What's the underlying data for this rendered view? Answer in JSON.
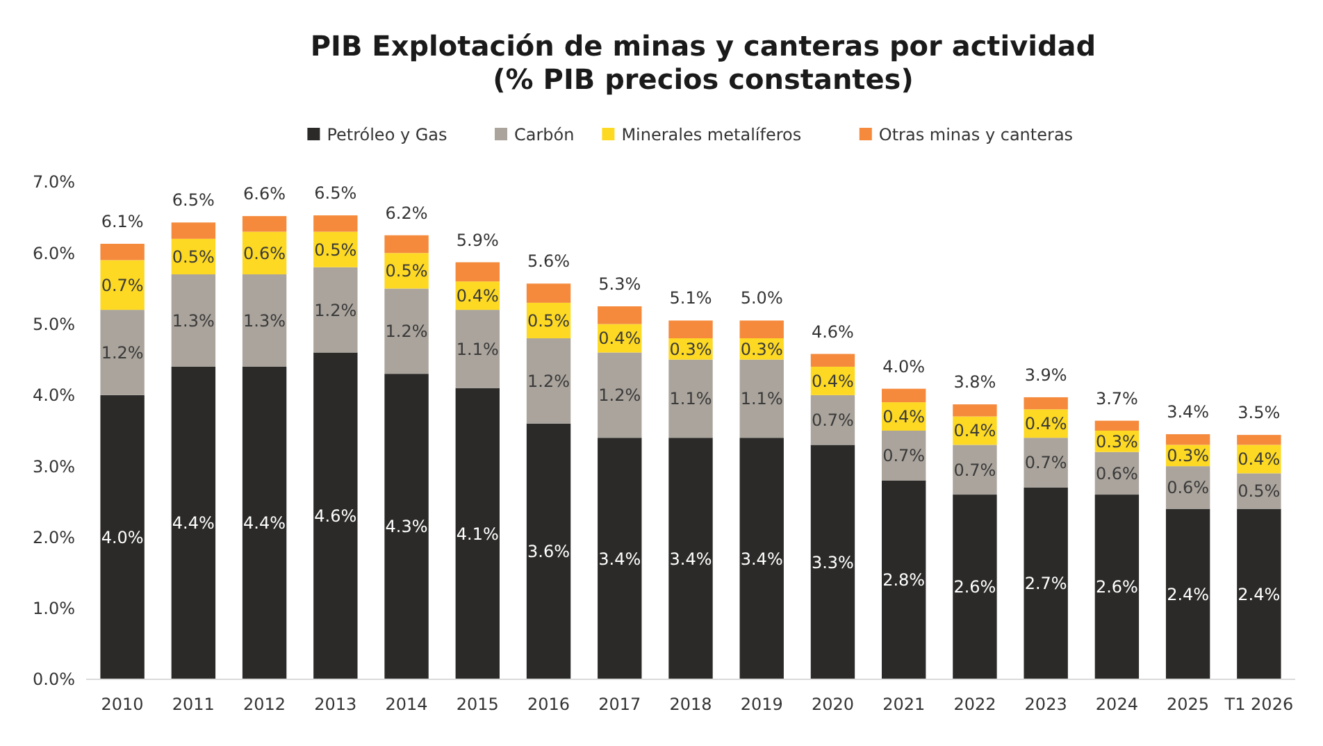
{
  "chart_data": {
    "type": "bar",
    "title": "PIB Explotación de minas y canteras por actividad\n(% PIB precios constantes)",
    "categories": [
      "2010",
      "2011",
      "2012",
      "2013",
      "2014",
      "2015",
      "2016",
      "2017",
      "2018",
      "2019",
      "2020",
      "2021",
      "2022",
      "2023",
      "2024",
      "2025",
      "T1 2026"
    ],
    "stacked": true,
    "legend": "top",
    "ylim": [
      0,
      7
    ],
    "yticks": [
      {
        "value": 0,
        "label": "0.0%"
      },
      {
        "value": 1,
        "label": "1.0%"
      },
      {
        "value": 2,
        "label": "2.0%"
      },
      {
        "value": 3,
        "label": "3.0%"
      },
      {
        "value": 4,
        "label": "4.0%"
      },
      {
        "value": 5,
        "label": "5.0%"
      },
      {
        "value": 6,
        "label": "6.0%"
      },
      {
        "value": 7,
        "label": "7.0%"
      }
    ],
    "series": [
      {
        "name": "Petróleo y Gas",
        "color": "#2b2a29",
        "values": [
          4.0,
          4.4,
          4.4,
          4.6,
          4.3,
          4.1,
          3.6,
          3.4,
          3.4,
          3.4,
          3.3,
          2.8,
          2.6,
          2.7,
          2.6,
          2.4,
          2.4
        ],
        "value_labels": [
          "4.0%",
          "4.4%",
          "4.4%",
          "4.6%",
          "4.3%",
          "4.1%",
          "3.6%",
          "3.4%",
          "3.4%",
          "3.4%",
          "3.3%",
          "2.8%",
          "2.6%",
          "2.7%",
          "2.6%",
          "2.4%",
          "2.4%"
        ]
      },
      {
        "name": "Carbón",
        "color": "#aaa49c",
        "values": [
          1.2,
          1.3,
          1.3,
          1.2,
          1.2,
          1.1,
          1.2,
          1.2,
          1.1,
          1.1,
          0.7,
          0.7,
          0.7,
          0.7,
          0.6,
          0.6,
          0.5
        ],
        "value_labels": [
          "1.2%",
          "1.3%",
          "1.3%",
          "1.2%",
          "1.2%",
          "1.1%",
          "1.2%",
          "1.2%",
          "1.1%",
          "1.1%",
          "0.7%",
          "0.7%",
          "0.7%",
          "0.7%",
          "0.6%",
          "0.6%",
          "0.5%"
        ]
      },
      {
        "name": "Minerales metalíferos",
        "color": "#fdd923",
        "values": [
          0.7,
          0.5,
          0.6,
          0.5,
          0.5,
          0.4,
          0.5,
          0.4,
          0.3,
          0.3,
          0.4,
          0.4,
          0.4,
          0.4,
          0.3,
          0.3,
          0.4
        ],
        "value_labels": [
          "0.7%",
          "0.5%",
          "0.6%",
          "0.5%",
          "0.5%",
          "0.4%",
          "0.5%",
          "0.4%",
          "0.3%",
          "0.3%",
          "0.4%",
          "0.4%",
          "0.4%",
          "0.4%",
          "0.3%",
          "0.3%",
          "0.4%"
        ]
      },
      {
        "name": "Otras minas y canteras",
        "color": "#f58a3c",
        "values": [
          0.23,
          0.23,
          0.22,
          0.23,
          0.25,
          0.27,
          0.27,
          0.25,
          0.25,
          0.25,
          0.18,
          0.19,
          0.17,
          0.17,
          0.14,
          0.15,
          0.14
        ]
      }
    ],
    "totals": [
      "6.1%",
      "6.5%",
      "6.6%",
      "6.5%",
      "6.2%",
      "5.9%",
      "5.6%",
      "5.3%",
      "5.1%",
      "5.0%",
      "4.6%",
      "4.0%",
      "3.8%",
      "3.9%",
      "3.7%",
      "3.4%",
      "3.5%"
    ]
  }
}
